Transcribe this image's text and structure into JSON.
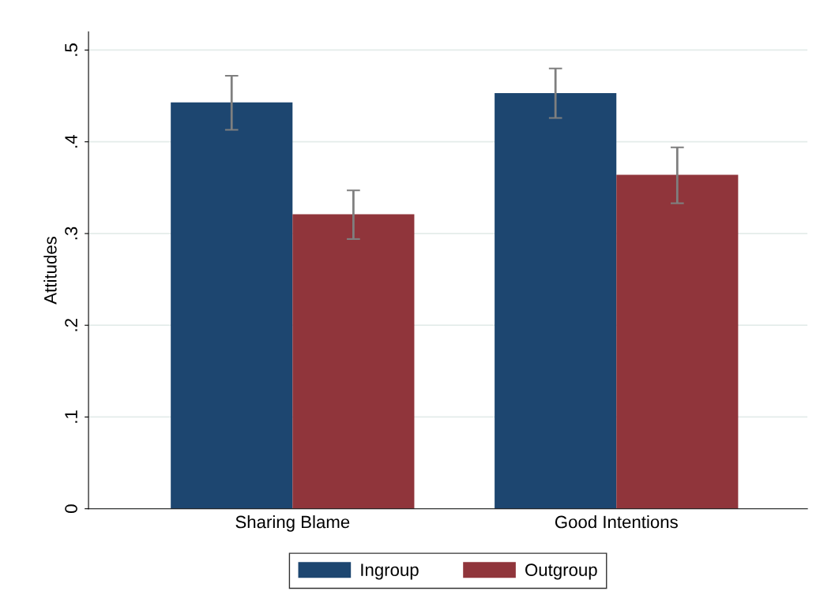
{
  "chart_data": {
    "type": "bar",
    "ylabel": "Attitudes",
    "categories": [
      "Sharing Blame",
      "Good Intentions"
    ],
    "series": [
      {
        "name": "Ingroup",
        "color": "#1d4670",
        "values": [
          0.443,
          0.453
        ],
        "errors": [
          [
            0.413,
            0.472
          ],
          [
            0.426,
            0.48
          ]
        ]
      },
      {
        "name": "Outgroup",
        "color": "#90353b",
        "values": [
          0.321,
          0.364
        ],
        "errors": [
          [
            0.294,
            0.347
          ],
          [
            0.333,
            0.394
          ]
        ]
      }
    ],
    "ylim": [
      0,
      0.52
    ],
    "yticks": [
      {
        "value": 0,
        "label": "0"
      },
      {
        "value": 0.1,
        "label": ".1"
      },
      {
        "value": 0.2,
        "label": ".2"
      },
      {
        "value": 0.3,
        "label": ".3"
      },
      {
        "value": 0.4,
        "label": ".4"
      },
      {
        "value": 0.5,
        "label": ".5"
      }
    ],
    "grid": "y",
    "legend": "bottom"
  }
}
